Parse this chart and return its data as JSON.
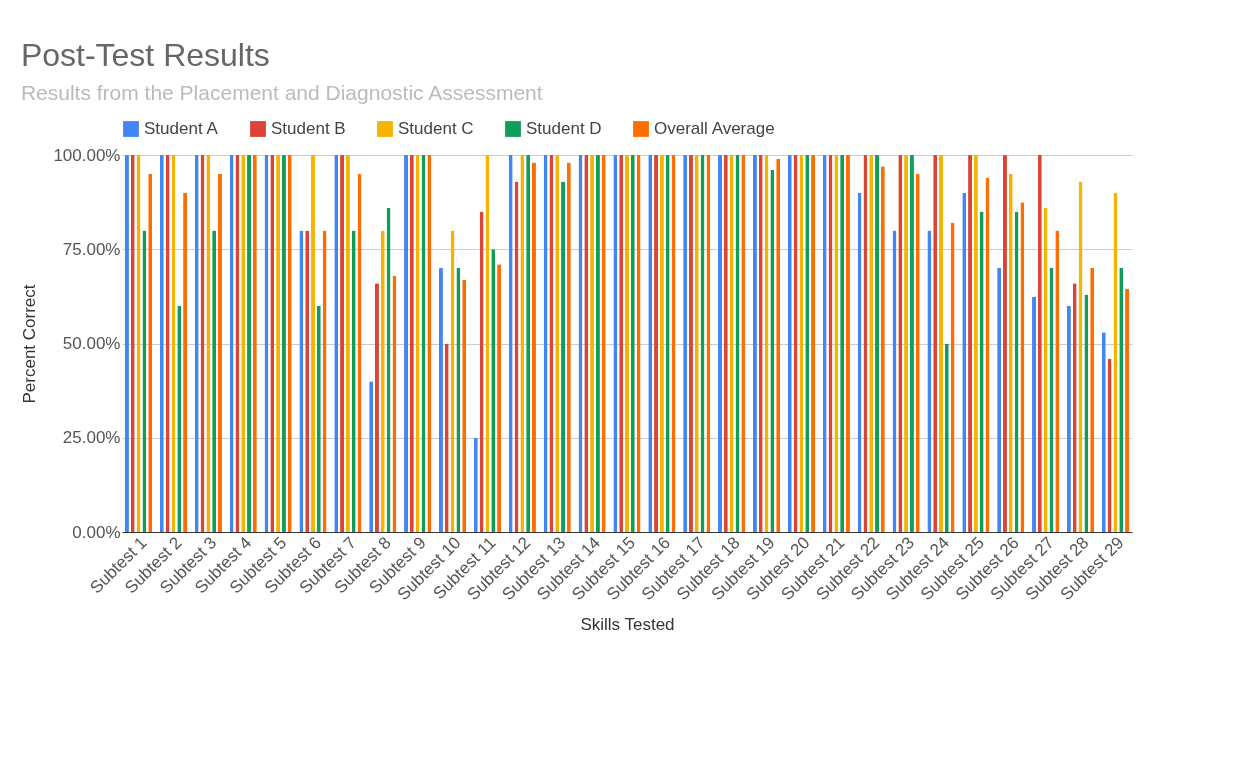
{
  "chart_data": {
    "type": "bar",
    "title": "Post-Test Results",
    "subtitle": "Results from the Placement and Diagnostic Assessment",
    "xlabel": "Skills Tested",
    "ylabel": "Percent Correct",
    "categories": [
      "Subtest 1",
      "Subtest 2",
      "Subtest 3",
      "Subtest 4",
      "Subtest 5",
      "Subtest 6",
      "Subtest 7",
      "Subtest 8",
      "Subtest 9",
      "Subtest 10",
      "Subtest 11",
      "Subtest 12",
      "Subtest 13",
      "Subtest 14",
      "Subtest 15",
      "Subtest 16",
      "Subtest 17",
      "Subtest 18",
      "Subtest 19",
      "Subtest 20",
      "Subtest 21",
      "Subtest 22",
      "Subtest 23",
      "Subtest 24",
      "Subtest 25",
      "Subtest 26",
      "Subtest 27",
      "Subtest 28",
      "Subtest 29"
    ],
    "series": [
      {
        "name": "Student A",
        "color": "#4285f4",
        "values": [
          100,
          100,
          100,
          100,
          100,
          80,
          100,
          40,
          100,
          70,
          25,
          100,
          100,
          100,
          100,
          100,
          100,
          100,
          100,
          100,
          100,
          90,
          80,
          80,
          90,
          70,
          62.5,
          60,
          53
        ]
      },
      {
        "name": "Student B",
        "color": "#db4437",
        "values": [
          100,
          100,
          100,
          100,
          100,
          80,
          100,
          66,
          100,
          50,
          85,
          93,
          100,
          100,
          100,
          100,
          100,
          100,
          100,
          100,
          100,
          100,
          100,
          100,
          100,
          100,
          100,
          66,
          46
        ]
      },
      {
        "name": "Student C",
        "color": "#f4b400",
        "values": [
          100,
          100,
          100,
          100,
          100,
          100,
          100,
          80,
          100,
          80,
          100,
          100,
          100,
          100,
          100,
          100,
          100,
          100,
          100,
          100,
          100,
          100,
          100,
          100,
          100,
          95,
          86,
          93,
          90
        ]
      },
      {
        "name": "Student D",
        "color": "#0f9d58",
        "values": [
          80,
          60,
          80,
          100,
          100,
          60,
          80,
          86,
          100,
          70,
          75,
          100,
          93,
          100,
          100,
          100,
          100,
          100,
          96,
          100,
          100,
          100,
          100,
          50,
          85,
          85,
          70,
          63,
          70
        ]
      },
      {
        "name": "Overall Average",
        "color": "#ff6d00",
        "values": [
          95,
          90,
          95,
          100,
          100,
          80,
          95,
          68,
          100,
          67,
          71,
          98,
          98,
          100,
          100,
          100,
          100,
          100,
          99,
          100,
          100,
          97,
          95,
          82,
          94,
          87.5,
          80,
          70,
          64.5
        ]
      }
    ],
    "ylim": [
      0,
      100
    ],
    "yticks": [
      {
        "value": 0,
        "label": "0.00%"
      },
      {
        "value": 25,
        "label": "25.00%"
      },
      {
        "value": 50,
        "label": "50.00%"
      },
      {
        "value": 75,
        "label": "75.00%"
      },
      {
        "value": 100,
        "label": "100.00%"
      }
    ],
    "grid": "y",
    "legend": "top"
  }
}
